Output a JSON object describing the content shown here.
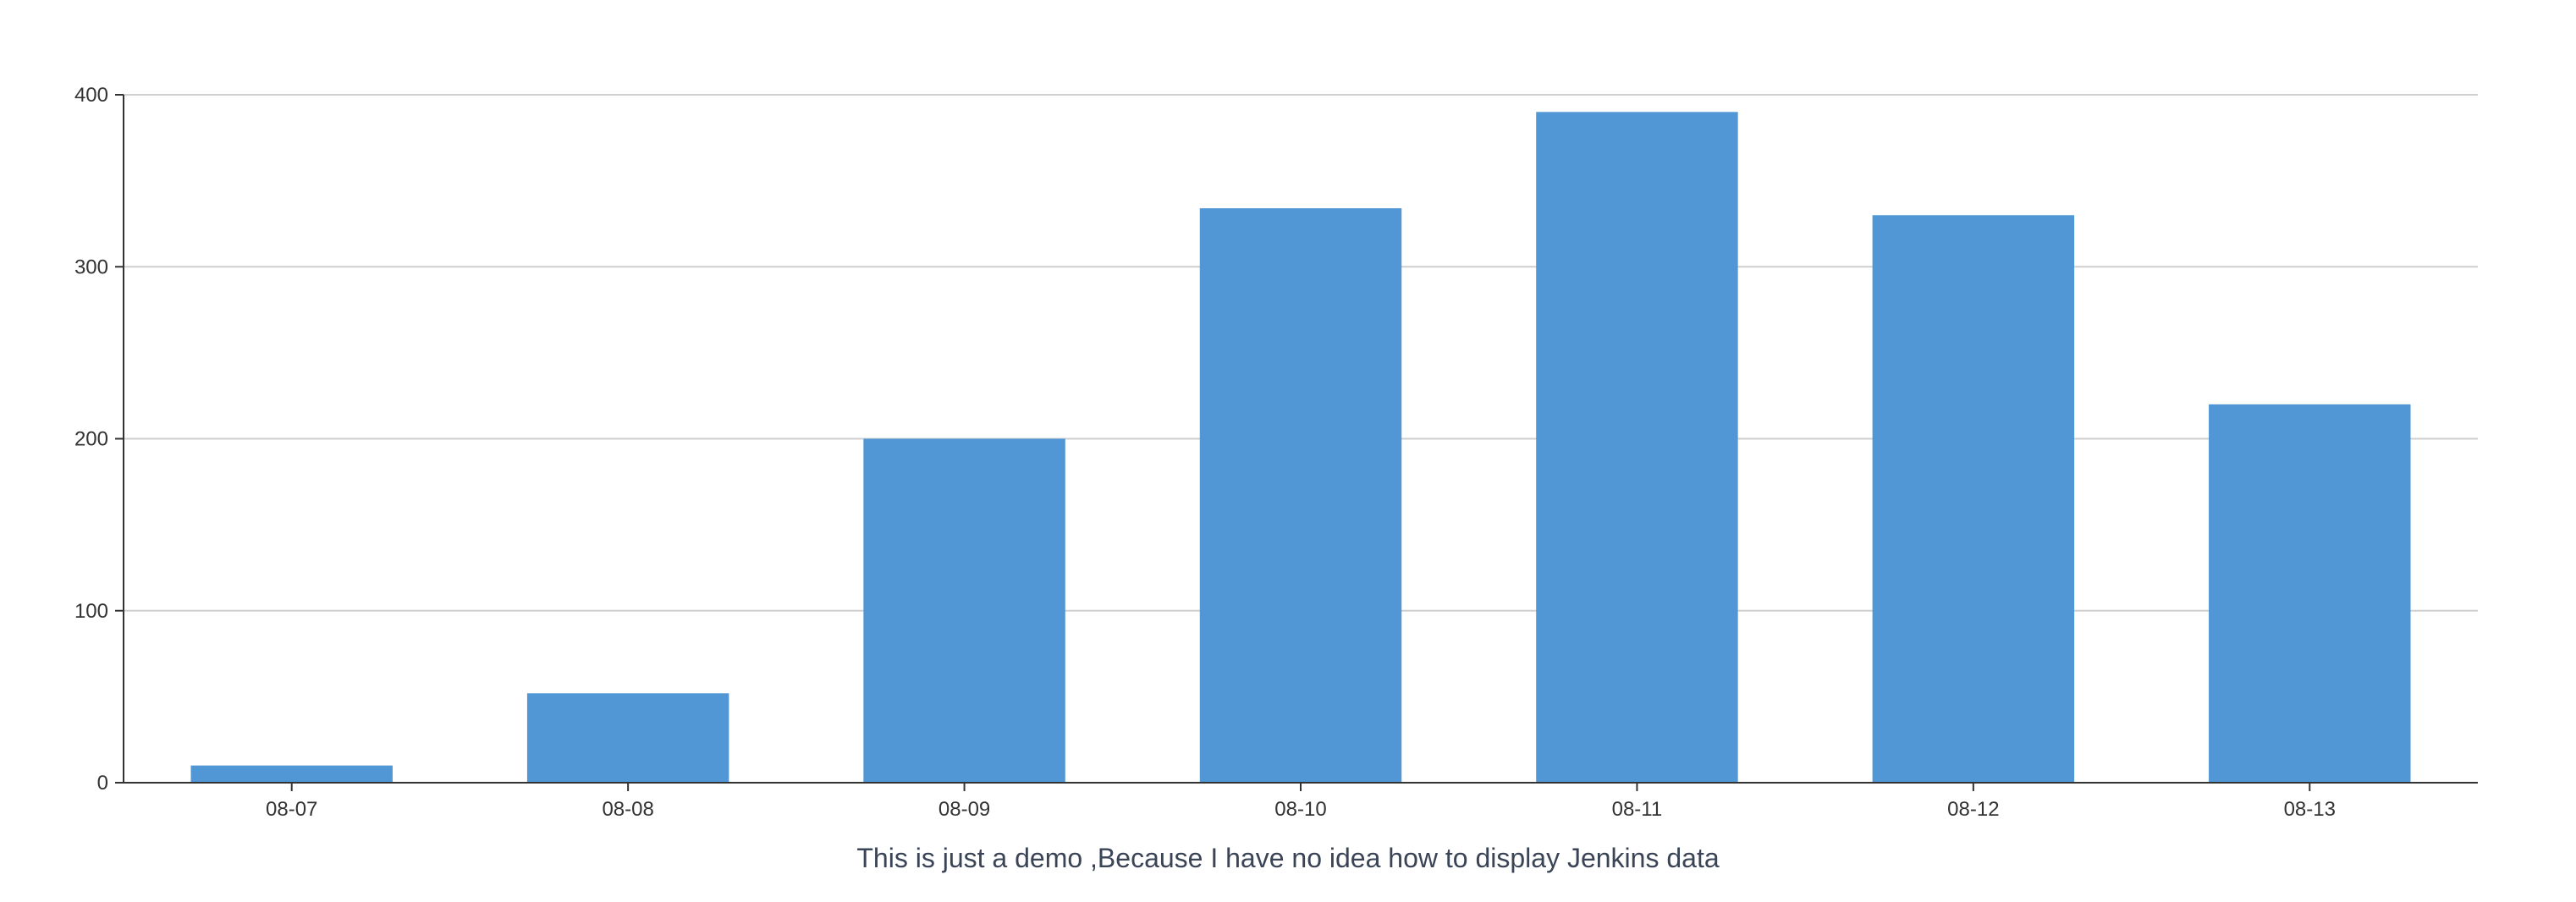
{
  "chart_data": {
    "type": "bar",
    "categories": [
      "08-07",
      "08-08",
      "08-09",
      "08-10",
      "08-11",
      "08-12",
      "08-13"
    ],
    "values": [
      10,
      52,
      200,
      334,
      390,
      330,
      220
    ],
    "y_ticks": [
      0,
      100,
      200,
      300,
      400
    ],
    "ylim": [
      0,
      400
    ],
    "grid": true,
    "bar_color": "#5197d5",
    "caption": "This is just a demo ,Because I have no idea how to display Jenkins data"
  }
}
